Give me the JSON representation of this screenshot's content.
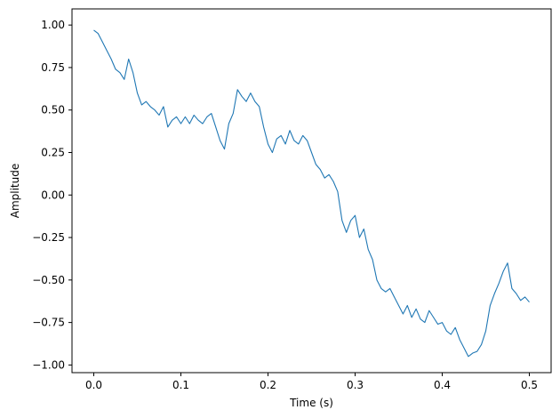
{
  "chart_data": {
    "type": "line",
    "title": "",
    "xlabel": "Time (s)",
    "ylabel": "Amplitude",
    "xlim": [
      -0.025,
      0.525
    ],
    "ylim": [
      -1.045,
      1.095
    ],
    "x_ticks": [
      0.0,
      0.1,
      0.2,
      0.3,
      0.4,
      0.5
    ],
    "x_tick_labels": [
      "0.0",
      "0.1",
      "0.2",
      "0.3",
      "0.4",
      "0.5"
    ],
    "y_ticks": [
      -1.0,
      -0.75,
      -0.5,
      -0.25,
      0.0,
      0.25,
      0.5,
      0.75,
      1.0
    ],
    "y_tick_labels": [
      "−1.00",
      "−0.75",
      "−0.50",
      "−0.25",
      "0.00",
      "0.25",
      "0.50",
      "0.75",
      "1.00"
    ],
    "grid": false,
    "line_color": "#1f77b4",
    "series": [
      {
        "x": [
          0.0,
          0.005,
          0.01,
          0.015,
          0.02,
          0.025,
          0.03,
          0.035,
          0.04,
          0.045,
          0.05,
          0.055,
          0.06,
          0.065,
          0.07,
          0.075,
          0.08,
          0.085,
          0.09,
          0.095,
          0.1,
          0.105,
          0.11,
          0.115,
          0.12,
          0.125,
          0.13,
          0.135,
          0.14,
          0.145,
          0.15,
          0.155,
          0.16,
          0.165,
          0.17,
          0.175,
          0.18,
          0.185,
          0.19,
          0.195,
          0.2,
          0.205,
          0.21,
          0.215,
          0.22,
          0.225,
          0.23,
          0.235,
          0.24,
          0.245,
          0.25,
          0.255,
          0.26,
          0.265,
          0.27,
          0.275,
          0.28,
          0.285,
          0.29,
          0.295,
          0.3,
          0.305,
          0.31,
          0.315,
          0.32,
          0.325,
          0.33,
          0.335,
          0.34,
          0.345,
          0.35,
          0.355,
          0.36,
          0.365,
          0.37,
          0.375,
          0.38,
          0.385,
          0.39,
          0.395,
          0.4,
          0.405,
          0.41,
          0.415,
          0.42,
          0.425,
          0.43,
          0.435,
          0.44,
          0.445,
          0.45,
          0.455,
          0.46,
          0.465,
          0.47,
          0.475,
          0.48,
          0.485,
          0.49,
          0.495,
          0.5
        ],
        "y": [
          0.97,
          0.95,
          0.9,
          0.85,
          0.8,
          0.74,
          0.72,
          0.68,
          0.8,
          0.72,
          0.6,
          0.53,
          0.55,
          0.52,
          0.5,
          0.47,
          0.52,
          0.4,
          0.44,
          0.46,
          0.42,
          0.46,
          0.42,
          0.47,
          0.44,
          0.42,
          0.46,
          0.48,
          0.4,
          0.32,
          0.27,
          0.42,
          0.48,
          0.62,
          0.58,
          0.55,
          0.6,
          0.55,
          0.52,
          0.4,
          0.3,
          0.25,
          0.33,
          0.35,
          0.3,
          0.38,
          0.32,
          0.3,
          0.35,
          0.32,
          0.25,
          0.18,
          0.15,
          0.1,
          0.12,
          0.08,
          0.02,
          -0.15,
          -0.22,
          -0.15,
          -0.12,
          -0.25,
          -0.2,
          -0.32,
          -0.38,
          -0.5,
          -0.55,
          -0.57,
          -0.55,
          -0.6,
          -0.65,
          -0.7,
          -0.65,
          -0.72,
          -0.67,
          -0.73,
          -0.75,
          -0.68,
          -0.72,
          -0.76,
          -0.75,
          -0.8,
          -0.82,
          -0.78,
          -0.85,
          -0.9,
          -0.95,
          -0.93,
          -0.92,
          -0.88,
          -0.8,
          -0.65,
          -0.58,
          -0.52,
          -0.45,
          -0.4,
          -0.55,
          -0.58,
          -0.62,
          -0.6,
          -0.63
        ]
      }
    ]
  }
}
